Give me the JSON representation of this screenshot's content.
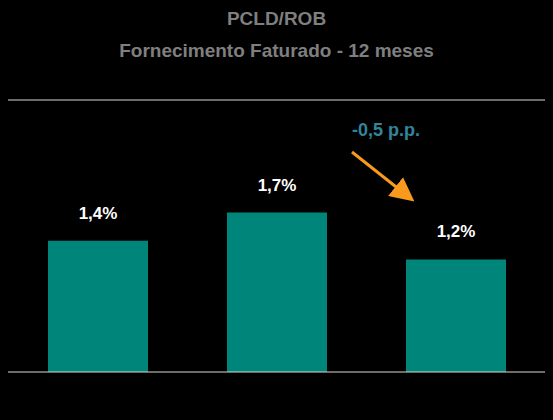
{
  "chart_data": {
    "type": "bar",
    "title": "PCLD/ROB",
    "subtitle": "Fornecimento Faturado - 12 meses",
    "categories": [
      null,
      null,
      null
    ],
    "values": [
      1.4,
      1.7,
      1.2
    ],
    "value_labels": [
      "1,4%",
      "1,7%",
      "1,2%"
    ],
    "data_labels": true,
    "color": "#00857a",
    "ylim": [
      0,
      2.9
    ],
    "yticks": [],
    "tick_labels": false,
    "grid": false,
    "annotations": [
      {
        "text": "-0,5 p.p."
      }
    ]
  }
}
